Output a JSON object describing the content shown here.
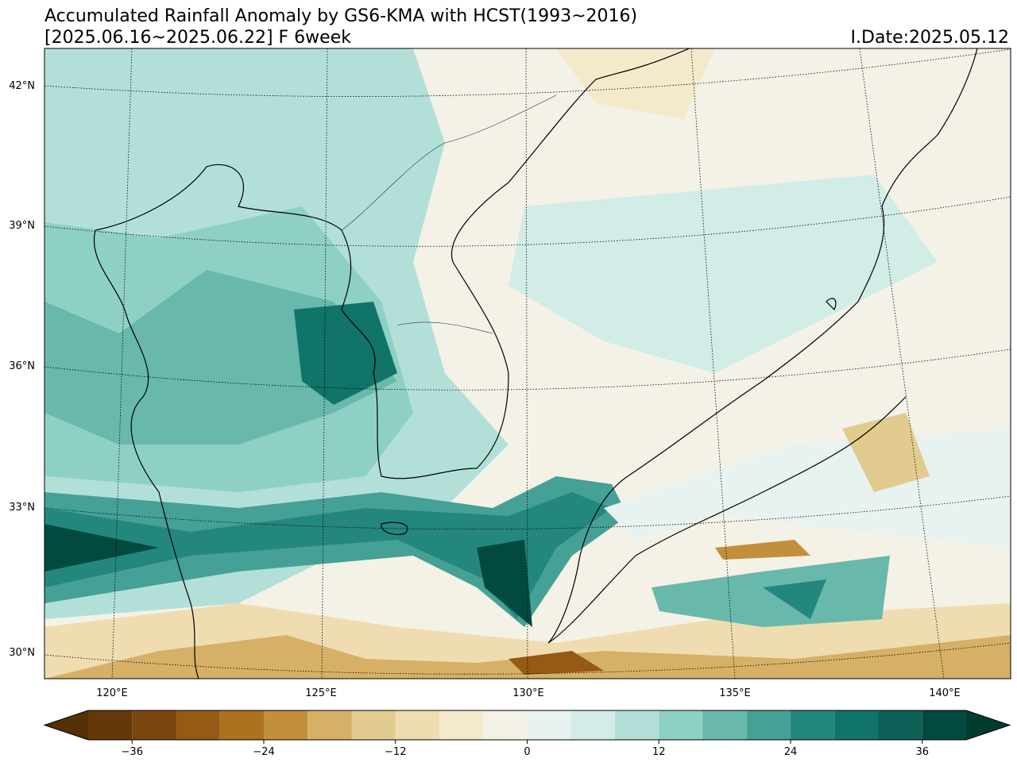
{
  "header": {
    "title": "Accumulated Rainfall Anomaly by GS6-KMA with HCST(1993~2016)",
    "subtitle": "[2025.06.16~2025.06.22] F 6week",
    "date": "I.Date:2025.05.12"
  },
  "map": {
    "lat_labels": [
      "42°N",
      "39°N",
      "36°N",
      "33°N",
      "30°N"
    ],
    "lon_labels": [
      "120°E",
      "125°E",
      "130°E",
      "135°E",
      "140°E"
    ]
  },
  "colorbar": {
    "bounds": [
      -40,
      -36,
      -32,
      -28,
      -24,
      -20,
      -16,
      -12,
      -8,
      -4,
      0,
      4,
      8,
      12,
      16,
      20,
      24,
      28,
      32,
      36,
      40
    ],
    "colors": [
      "#643809",
      "#7b4510",
      "#955a16",
      "#ad721f",
      "#c28f3c",
      "#d5b066",
      "#e2cb8f",
      "#efdcb0",
      "#f5e9cc",
      "#f4f1e6",
      "#e8f2f0",
      "#d2ece8",
      "#b2e0d9",
      "#8fd0c4",
      "#68b9ab",
      "#45a095",
      "#24877d",
      "#107468",
      "#0b5f55",
      "#024a40"
    ],
    "under_color": "#543005",
    "over_color": "#003c30",
    "ticks": [
      {
        "value": -36,
        "label": "−36"
      },
      {
        "value": -24,
        "label": "−24"
      },
      {
        "value": -12,
        "label": "−12"
      },
      0,
      12,
      24,
      36
    ]
  }
}
